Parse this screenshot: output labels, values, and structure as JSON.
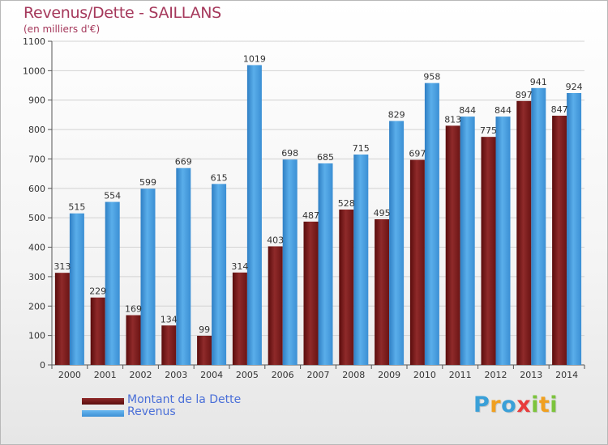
{
  "header": {
    "title": "Revenus/Dette - SAILLANS",
    "subtitle": "(en milliers d'€)"
  },
  "legend": {
    "items": [
      {
        "label": "Montant de la Dette",
        "color": "#7a1a1a"
      },
      {
        "label": "Revenus",
        "color": "#4a9fe0"
      }
    ]
  },
  "logo": {
    "text": "Proxiti",
    "letters": [
      {
        "ch": "P",
        "color": "#3aa0d8"
      },
      {
        "ch": "r",
        "color": "#f0a020"
      },
      {
        "ch": "o",
        "color": "#3aa0d8"
      },
      {
        "ch": "x",
        "color": "#e83c3c"
      },
      {
        "ch": "i",
        "color": "#7cc43c"
      },
      {
        "ch": "t",
        "color": "#f0a020"
      },
      {
        "ch": "i",
        "color": "#7cc43c"
      }
    ]
  },
  "chart_data": {
    "type": "bar",
    "title": "Revenus/Dette - SAILLANS",
    "subtitle": "(en milliers d'€)",
    "categories": [
      "2000",
      "2001",
      "2002",
      "2003",
      "2004",
      "2005",
      "2006",
      "2007",
      "2008",
      "2009",
      "2010",
      "2011",
      "2012",
      "2013",
      "2014"
    ],
    "series": [
      {
        "name": "Montant de la Dette",
        "color": "#7a1a1a",
        "values": [
          313,
          229,
          169,
          134,
          99,
          314,
          403,
          487,
          528,
          495,
          697,
          813,
          775,
          897,
          847
        ]
      },
      {
        "name": "Revenus",
        "color": "#4a9fe0",
        "values": [
          515,
          554,
          599,
          669,
          615,
          1019,
          698,
          685,
          715,
          829,
          958,
          844,
          844,
          941,
          924
        ]
      }
    ],
    "ylim": [
      0,
      1100
    ],
    "yticks": [
      0,
      100,
      200,
      300,
      400,
      500,
      600,
      700,
      800,
      900,
      1000,
      1100
    ],
    "grid": true,
    "legend_position": "bottom-left"
  }
}
